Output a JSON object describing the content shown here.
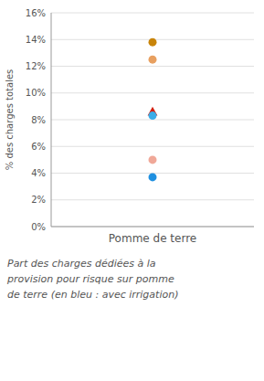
{
  "chart_data": {
    "type": "scatter",
    "categories": [
      "Pomme de terre"
    ],
    "ylabel": "% des charges totales",
    "ylim": [
      0,
      0.16
    ],
    "yticks": [
      {
        "value": 0.0,
        "label": "0%"
      },
      {
        "value": 0.02,
        "label": "2%"
      },
      {
        "value": 0.04,
        "label": "4%"
      },
      {
        "value": 0.06,
        "label": "6%"
      },
      {
        "value": 0.08,
        "label": "8%"
      },
      {
        "value": 0.1,
        "label": "10%"
      },
      {
        "value": 0.12,
        "label": "12%"
      },
      {
        "value": 0.14,
        "label": "14%"
      },
      {
        "value": 0.16,
        "label": "16%"
      }
    ],
    "grid": true,
    "series": [
      {
        "color": "#C8840A",
        "marker": "circle",
        "values": [
          0.138
        ]
      },
      {
        "color": "#E8A060",
        "marker": "circle",
        "values": [
          0.125
        ]
      },
      {
        "color": "#D42010",
        "marker": "triangle",
        "values": [
          0.086
        ]
      },
      {
        "color": "#3AACE8",
        "marker": "circle",
        "values": [
          0.083
        ]
      },
      {
        "color": "#F0A898",
        "marker": "circle",
        "values": [
          0.05
        ]
      },
      {
        "color": "#2090E0",
        "marker": "circle",
        "values": [
          0.037
        ]
      }
    ],
    "caption": [
      "Part des charges dédiées à la",
      "provision pour risque sur pomme",
      "de terre (en bleu : avec irrigation)"
    ]
  }
}
